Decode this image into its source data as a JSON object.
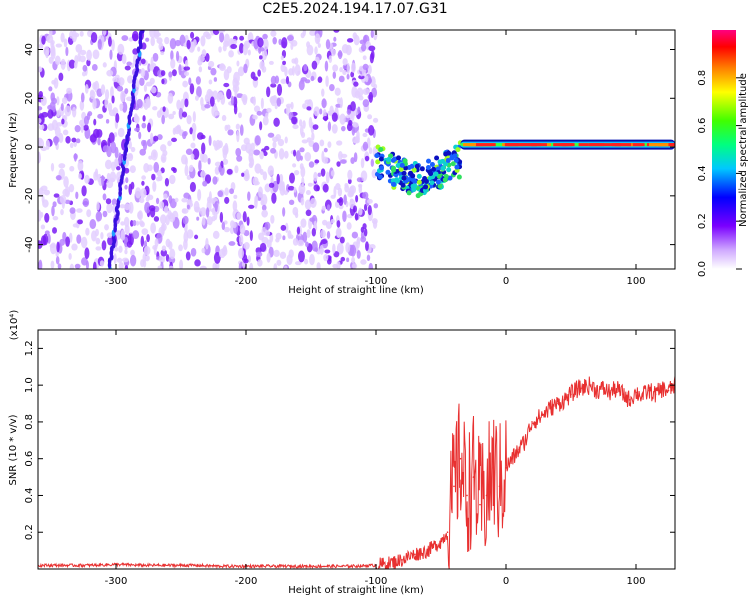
{
  "page": {
    "title": "C2E5.2024.194.17.07.G31"
  },
  "chart_data": [
    {
      "type": "heatmap",
      "xlabel": "Height of straight line (km)",
      "ylabel": "Frequency (Hz)",
      "xlim": [
        -360,
        130
      ],
      "ylim": [
        -50,
        48
      ],
      "x_ticks": [
        -300,
        -200,
        -100,
        0,
        100
      ],
      "x_tick_labels": [
        "-300",
        "-200",
        "-100",
        "0",
        "100"
      ],
      "y_ticks": [
        40,
        20,
        0,
        -20,
        -40
      ],
      "y_tick_labels": [
        "40",
        "20",
        "0",
        "-20",
        "-40"
      ],
      "colorbar": {
        "label": "Normalized spectral amplitude",
        "range": [
          0,
          1
        ],
        "ticks": [
          0.0,
          0.2,
          0.4,
          0.6,
          0.8
        ],
        "tick_labels": [
          "0.0",
          "0.2",
          "0.4",
          "0.6",
          "0.8"
        ],
        "colors": [
          "#ffffff",
          "#cfa8ff",
          "#7a00ff",
          "#0000ff",
          "#00c8ff",
          "#00ff80",
          "#40ff00",
          "#ffff00",
          "#ff8000",
          "#ff0000",
          "#ff0080"
        ]
      },
      "regions": [
        {
          "name": "noise",
          "x_range": [
            -360,
            -100
          ],
          "y_range": [
            -50,
            48
          ],
          "amplitude": 0.15
        },
        {
          "name": "trace-drift",
          "x": [
            -305,
            -280
          ],
          "y": [
            -50,
            48
          ],
          "amplitude": 0.3
        },
        {
          "name": "transition",
          "x_range": [
            -100,
            -35
          ],
          "y_range": [
            -22,
            8
          ],
          "amplitude": 0.5
        },
        {
          "name": "carrier",
          "x_range": [
            -35,
            130
          ],
          "y_center": 1,
          "amplitude": 1.0
        }
      ]
    },
    {
      "type": "line",
      "xlabel": "Height of straight line (km)",
      "ylabel": "SNR (10 * v/v)",
      "y_multiplier": "(x10⁴)",
      "xlim": [
        -360,
        130
      ],
      "ylim": [
        0,
        1.3
      ],
      "x_ticks": [
        -300,
        -200,
        -100,
        0,
        100
      ],
      "x_tick_labels": [
        "-300",
        "-200",
        "-100",
        "0",
        "100"
      ],
      "y_ticks": [
        0.2,
        0.4,
        0.6,
        0.8,
        1.0,
        1.2
      ],
      "y_tick_labels": [
        "0.2",
        "0.4",
        "0.6",
        "0.8",
        "1.0",
        "1.2"
      ],
      "series": [
        {
          "color": "#e83030",
          "x": [
            -360,
            -340,
            -320,
            -300,
            -280,
            -260,
            -240,
            -220,
            -200,
            -180,
            -160,
            -140,
            -120,
            -100,
            -90,
            -80,
            -70,
            -60,
            -50,
            -45,
            -40,
            -35,
            -30,
            -25,
            -20,
            -15,
            -10,
            -5,
            0,
            5,
            10,
            15,
            20,
            25,
            30,
            35,
            40,
            45,
            50,
            55,
            60,
            65,
            70,
            75,
            80,
            85,
            90,
            95,
            100,
            105,
            110,
            115,
            120,
            125,
            130
          ],
          "y": [
            0.02,
            0.02,
            0.02,
            0.025,
            0.02,
            0.02,
            0.02,
            0.015,
            0.015,
            0.015,
            0.015,
            0.015,
            0.015,
            0.02,
            0.03,
            0.05,
            0.08,
            0.1,
            0.15,
            0.2,
            0.45,
            0.6,
            0.4,
            0.5,
            0.35,
            0.4,
            0.55,
            0.45,
            0.55,
            0.6,
            0.65,
            0.7,
            0.8,
            0.82,
            0.85,
            0.88,
            0.9,
            0.92,
            0.95,
            0.98,
            0.99,
            1.0,
            0.97,
            0.98,
            0.96,
            0.98,
            0.95,
            0.92,
            0.96,
            0.94,
            0.97,
            0.95,
            0.98,
            0.97,
            1.0
          ]
        }
      ]
    }
  ]
}
